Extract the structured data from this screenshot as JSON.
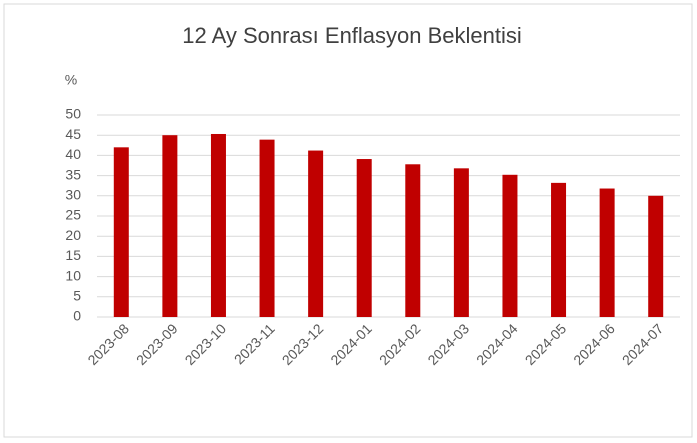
{
  "chart_data": {
    "type": "bar",
    "title": "12 Ay Sonrası Enflasyon Beklentisi",
    "ylabel": "%",
    "categories": [
      "2023-08",
      "2023-09",
      "2023-10",
      "2023-11",
      "2023-12",
      "2024-01",
      "2024-02",
      "2024-03",
      "2024-04",
      "2024-05",
      "2024-06",
      "2024-07"
    ],
    "values": [
      42.0,
      45.0,
      45.3,
      43.9,
      41.2,
      39.1,
      37.8,
      36.8,
      35.2,
      33.2,
      31.8,
      30.0
    ],
    "color": "#c00000",
    "ylim": [
      0,
      50
    ],
    "yticks": [
      0,
      5,
      10,
      15,
      20,
      25,
      30,
      35,
      40,
      45,
      50
    ],
    "grid": true
  }
}
